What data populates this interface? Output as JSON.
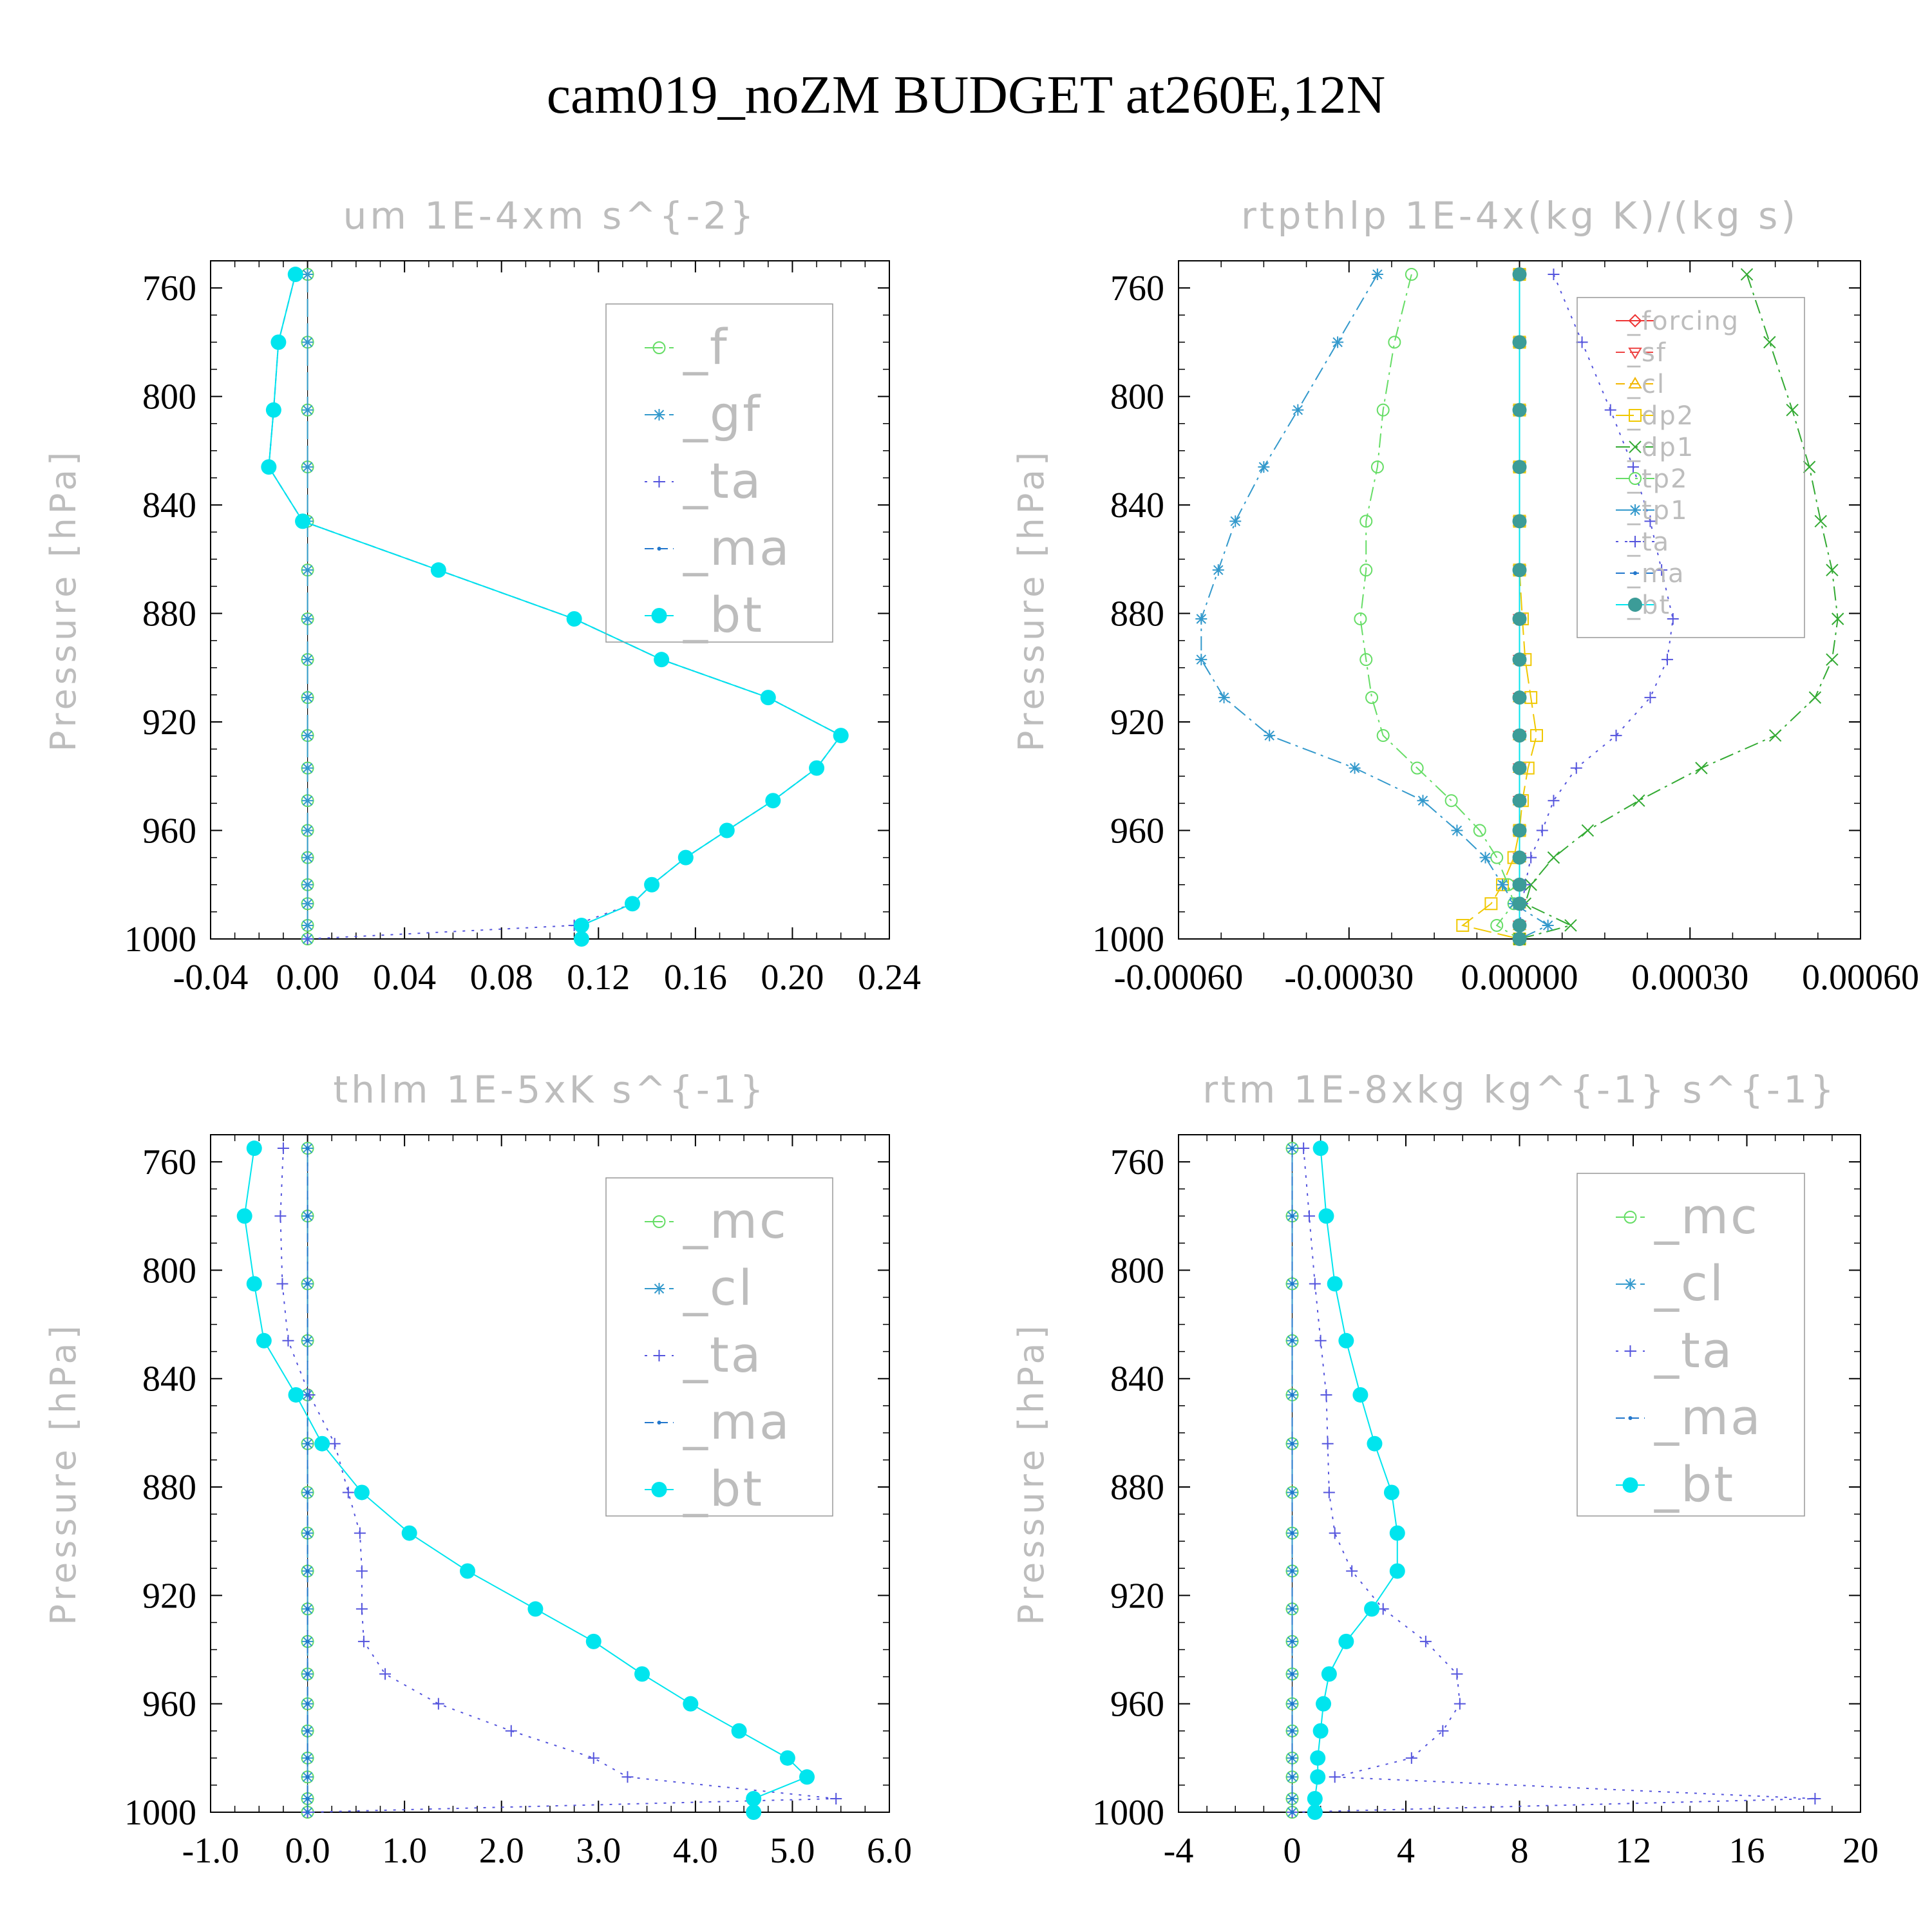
{
  "title": "cam019_noZM  BUDGET at260E,12N",
  "colors": {
    "f": "#66dd66",
    "gf": "#3399cc",
    "ta": "#5555dd",
    "ma": "#2277cc",
    "bt": "#00e5ee",
    "forcing": "#ee3333",
    "sf": "#ee4444",
    "cl_rt": "#f2b600",
    "dp2": "#f0c800",
    "dp1": "#33aa33",
    "tp2": "#66dd66",
    "tp1": "#3399cc",
    "mc": "#66dd66",
    "cl": "#3399cc"
  },
  "chart_data": [
    {
      "type": "line",
      "title": "um  1E-4xm s^{-2}",
      "ylabel": "Pressure [hPa]",
      "xlim": [
        -0.04,
        0.24
      ],
      "ylim": [
        1000,
        750
      ],
      "xticks": [
        "-0.04",
        "0.00",
        "0.04",
        "0.08",
        "0.12",
        "0.16",
        "0.20",
        "0.24"
      ],
      "xtick_values": [
        -0.04,
        0.0,
        0.04,
        0.08,
        0.12,
        0.16,
        0.2,
        0.24
      ],
      "yticks": [
        "760",
        "800",
        "840",
        "880",
        "920",
        "960",
        "1000"
      ],
      "ytick_values": [
        760,
        800,
        840,
        880,
        920,
        960,
        1000
      ],
      "legend_position": "top-right",
      "levels": [
        755,
        780,
        805,
        826,
        846,
        864,
        882,
        897,
        911,
        925,
        937,
        949,
        960,
        970,
        980,
        987,
        995,
        1000
      ],
      "series": [
        {
          "name": "_f",
          "key": "f",
          "marker": "circle",
          "dash": "long",
          "values": [
            0,
            0,
            0,
            0,
            0,
            0,
            0,
            0,
            0,
            0,
            0,
            0,
            0,
            0,
            0,
            0,
            0,
            0
          ]
        },
        {
          "name": "_gf",
          "key": "gf",
          "marker": "star",
          "dash": "long",
          "values": [
            0,
            0,
            0,
            0,
            0,
            0,
            0,
            0,
            0,
            0,
            0,
            0,
            0,
            0,
            0,
            0,
            0,
            0
          ]
        },
        {
          "name": "_ta",
          "key": "ta",
          "marker": "plus",
          "dash": "dot",
          "values": [
            -0.005,
            -0.012,
            -0.014,
            -0.016,
            -0.002,
            0.054,
            0.11,
            0.146,
            0.19,
            0.22,
            0.21,
            0.192,
            0.173,
            0.156,
            0.142,
            0.134,
            0.11,
            0.0
          ]
        },
        {
          "name": "_ma",
          "key": "ma",
          "marker": "dot",
          "dash": "dash",
          "values": [
            -0.005,
            -0.012,
            -0.014,
            -0.016,
            -0.002,
            0.054,
            0.11,
            0.146,
            0.19,
            0.22,
            0.21,
            0.192,
            0.173,
            0.156,
            0.142,
            0.134,
            0.113,
            0.113
          ]
        },
        {
          "name": "_bt",
          "key": "bt",
          "marker": "fill",
          "dash": "none",
          "values": [
            -0.005,
            -0.012,
            -0.014,
            -0.016,
            -0.002,
            0.054,
            0.11,
            0.146,
            0.19,
            0.22,
            0.21,
            0.192,
            0.173,
            0.156,
            0.142,
            0.134,
            0.113,
            0.113
          ]
        }
      ]
    },
    {
      "type": "line",
      "title": "rtpthlp  1E-4x(kg K)/(kg s)",
      "ylabel": "Pressure [hPa]",
      "xlim": [
        -0.0006,
        0.0006
      ],
      "ylim": [
        1000,
        750
      ],
      "xticks": [
        "-0.00060",
        "-0.00030",
        "0.00000",
        "0.00030",
        "0.00060"
      ],
      "xtick_values": [
        -0.0006,
        -0.0003,
        0.0,
        0.0003,
        0.0006
      ],
      "yticks": [
        "760",
        "800",
        "840",
        "880",
        "920",
        "960",
        "1000"
      ],
      "ytick_values": [
        760,
        800,
        840,
        880,
        920,
        960,
        1000
      ],
      "legend_position": "top-right",
      "legend_size": "small",
      "levels": [
        755,
        780,
        805,
        826,
        846,
        864,
        882,
        897,
        911,
        925,
        937,
        949,
        960,
        970,
        980,
        987,
        995,
        1000
      ],
      "series": [
        {
          "name": "_forcing",
          "key": "forcing",
          "marker": "diamond",
          "dash": "none",
          "values": [
            0,
            0,
            0,
            0,
            0,
            0,
            0,
            0,
            0,
            0,
            0,
            0,
            0,
            0,
            0,
            0,
            0,
            0
          ]
        },
        {
          "name": "_sf",
          "key": "sf",
          "marker": "tri-down",
          "dash": "dash",
          "values": [
            0,
            0,
            0,
            0,
            0,
            0,
            0,
            0,
            0,
            0,
            0,
            0,
            0,
            0,
            0,
            0,
            0,
            0
          ]
        },
        {
          "name": "_cl",
          "key": "cl_rt",
          "marker": "tri-up",
          "dash": "dash",
          "values": [
            0,
            0,
            0,
            0,
            0,
            0,
            0,
            0,
            0,
            0,
            0,
            0,
            0,
            0,
            0,
            0,
            0,
            0
          ]
        },
        {
          "name": "_dp2",
          "key": "dp2",
          "marker": "square",
          "dash": "long",
          "values": [
            0,
            0,
            0,
            0,
            0,
            0,
            5e-06,
            1e-05,
            2e-05,
            3e-05,
            1.5e-05,
            5e-06,
            0,
            -1e-05,
            -3e-05,
            -5e-05,
            -0.0001,
            0
          ]
        },
        {
          "name": "_dp1",
          "key": "dp1",
          "marker": "x",
          "dash": "dashdot",
          "values": [
            0.0004,
            0.00044,
            0.00048,
            0.00051,
            0.00053,
            0.00055,
            0.00056,
            0.00055,
            0.00052,
            0.00045,
            0.00032,
            0.00021,
            0.00012,
            6e-05,
            2e-05,
            1e-05,
            9e-05,
            0
          ]
        },
        {
          "name": "_tp2",
          "key": "tp2",
          "marker": "circle",
          "dash": "dashdot",
          "values": [
            -0.00019,
            -0.00022,
            -0.00024,
            -0.00025,
            -0.00027,
            -0.00027,
            -0.00028,
            -0.00027,
            -0.00026,
            -0.00024,
            -0.00018,
            -0.00012,
            -7e-05,
            -4e-05,
            -2e-05,
            -1e-05,
            -4e-05,
            0
          ]
        },
        {
          "name": "_tp1",
          "key": "tp1",
          "marker": "star",
          "dash": "dashdot",
          "values": [
            -0.00025,
            -0.00032,
            -0.00039,
            -0.00045,
            -0.0005,
            -0.00053,
            -0.00056,
            -0.00056,
            -0.00052,
            -0.00044,
            -0.00029,
            -0.00017,
            -0.00011,
            -6e-05,
            -3e-05,
            -1e-05,
            5e-05,
            0
          ]
        },
        {
          "name": "_ta",
          "key": "ta",
          "marker": "plus",
          "dash": "dot",
          "values": [
            6e-05,
            0.00011,
            0.00016,
            0.0002,
            0.00023,
            0.00025,
            0.00027,
            0.00026,
            0.00023,
            0.00017,
            0.0001,
            6e-05,
            4e-05,
            2e-05,
            1e-05,
            5e-06,
            0,
            0
          ]
        },
        {
          "name": "_ma",
          "key": "ma",
          "marker": "dot",
          "dash": "dash",
          "values": [
            0,
            0,
            0,
            0,
            0,
            0,
            0,
            0,
            0,
            0,
            0,
            0,
            0,
            0,
            0,
            0,
            0,
            0
          ]
        },
        {
          "name": "_bt",
          "key": "bt",
          "marker": "fill-teal",
          "dash": "none",
          "values": [
            0,
            0,
            0,
            0,
            0,
            0,
            0,
            0,
            0,
            0,
            0,
            0,
            0,
            0,
            0,
            0,
            0,
            0
          ]
        }
      ]
    },
    {
      "type": "line",
      "title": "thlm  1E-5xK s^{-1}",
      "ylabel": "Pressure [hPa]",
      "xlim": [
        -1.0,
        6.0
      ],
      "ylim": [
        1000,
        750
      ],
      "xticks": [
        "-1.0",
        "0.0",
        "1.0",
        "2.0",
        "3.0",
        "4.0",
        "5.0",
        "6.0"
      ],
      "xtick_values": [
        -1.0,
        0.0,
        1.0,
        2.0,
        3.0,
        4.0,
        5.0,
        6.0
      ],
      "yticks": [
        "760",
        "800",
        "840",
        "880",
        "920",
        "960",
        "1000"
      ],
      "ytick_values": [
        760,
        800,
        840,
        880,
        920,
        960,
        1000
      ],
      "legend_position": "top-right",
      "levels": [
        755,
        780,
        805,
        826,
        846,
        864,
        882,
        897,
        911,
        925,
        937,
        949,
        960,
        970,
        980,
        987,
        995,
        1000
      ],
      "series": [
        {
          "name": "_mc",
          "key": "mc",
          "marker": "circle",
          "dash": "long",
          "values": [
            0,
            0,
            0,
            0,
            0,
            0,
            0,
            0,
            0,
            0,
            0,
            0,
            0,
            0,
            0,
            0,
            0,
            0
          ]
        },
        {
          "name": "_cl",
          "key": "cl",
          "marker": "star",
          "dash": "long",
          "values": [
            0,
            0,
            0,
            0,
            0,
            0,
            0,
            0,
            0,
            0,
            0,
            0,
            0,
            0,
            0,
            0,
            0,
            0
          ]
        },
        {
          "name": "_ta",
          "key": "ta",
          "marker": "plus",
          "dash": "dot",
          "values": [
            -0.25,
            -0.28,
            -0.26,
            -0.2,
            0.02,
            0.28,
            0.42,
            0.54,
            0.56,
            0.56,
            0.58,
            0.8,
            1.35,
            2.1,
            2.95,
            3.3,
            5.45,
            0.0
          ]
        },
        {
          "name": "_ma",
          "key": "ma",
          "marker": "dot",
          "dash": "dash",
          "values": [
            0,
            0,
            0,
            0,
            0,
            0,
            0,
            0,
            0,
            0,
            0,
            0,
            0,
            0,
            0,
            0,
            0,
            0
          ]
        },
        {
          "name": "_bt",
          "key": "bt",
          "marker": "fill",
          "dash": "solid",
          "values": [
            -0.55,
            -0.65,
            -0.55,
            -0.45,
            -0.12,
            0.15,
            0.56,
            1.05,
            1.65,
            2.35,
            2.95,
            3.45,
            3.95,
            4.45,
            4.95,
            5.15,
            4.6,
            4.6
          ]
        }
      ]
    },
    {
      "type": "line",
      "title": "rtm  1E-8xkg kg^{-1} s^{-1}",
      "ylabel": "Pressure [hPa]",
      "xlim": [
        -4,
        20
      ],
      "ylim": [
        1000,
        750
      ],
      "xticks": [
        "-4",
        "0",
        "4",
        "8",
        "12",
        "16",
        "20"
      ],
      "xtick_values": [
        -4,
        0,
        4,
        8,
        12,
        16,
        20
      ],
      "yticks": [
        "760",
        "800",
        "840",
        "880",
        "920",
        "960",
        "1000"
      ],
      "ytick_values": [
        760,
        800,
        840,
        880,
        920,
        960,
        1000
      ],
      "legend_position": "top-right",
      "levels": [
        755,
        780,
        805,
        826,
        846,
        864,
        882,
        897,
        911,
        925,
        937,
        949,
        960,
        970,
        980,
        987,
        995,
        1000
      ],
      "series": [
        {
          "name": "_mc",
          "key": "mc",
          "marker": "circle",
          "dash": "long",
          "values": [
            0,
            0,
            0,
            0,
            0,
            0,
            0,
            0,
            0,
            0,
            0,
            0,
            0,
            0,
            0,
            0,
            0,
            0
          ]
        },
        {
          "name": "_cl",
          "key": "cl",
          "marker": "star",
          "dash": "long",
          "values": [
            0,
            0,
            0,
            0,
            0,
            0,
            0,
            0,
            0,
            0,
            0,
            0,
            0,
            0,
            0,
            0,
            0,
            0
          ]
        },
        {
          "name": "_ta",
          "key": "ta",
          "marker": "plus",
          "dash": "dot",
          "values": [
            0.4,
            0.6,
            0.8,
            1.0,
            1.2,
            1.25,
            1.3,
            1.5,
            2.1,
            3.2,
            4.7,
            5.8,
            5.9,
            5.3,
            4.2,
            1.5,
            18.4,
            0.0
          ]
        },
        {
          "name": "_ma",
          "key": "ma",
          "marker": "dot",
          "dash": "dash",
          "values": [
            0,
            0,
            0,
            0,
            0,
            0,
            0,
            0,
            0,
            0,
            0,
            0,
            0,
            0,
            0,
            0,
            0,
            0
          ]
        },
        {
          "name": "_bt",
          "key": "bt",
          "marker": "fill",
          "dash": "solid",
          "values": [
            1.0,
            1.2,
            1.5,
            1.9,
            2.4,
            2.9,
            3.5,
            3.7,
            3.7,
            2.8,
            1.9,
            1.3,
            1.1,
            1.0,
            0.9,
            0.9,
            0.8,
            0.8
          ]
        }
      ]
    }
  ]
}
